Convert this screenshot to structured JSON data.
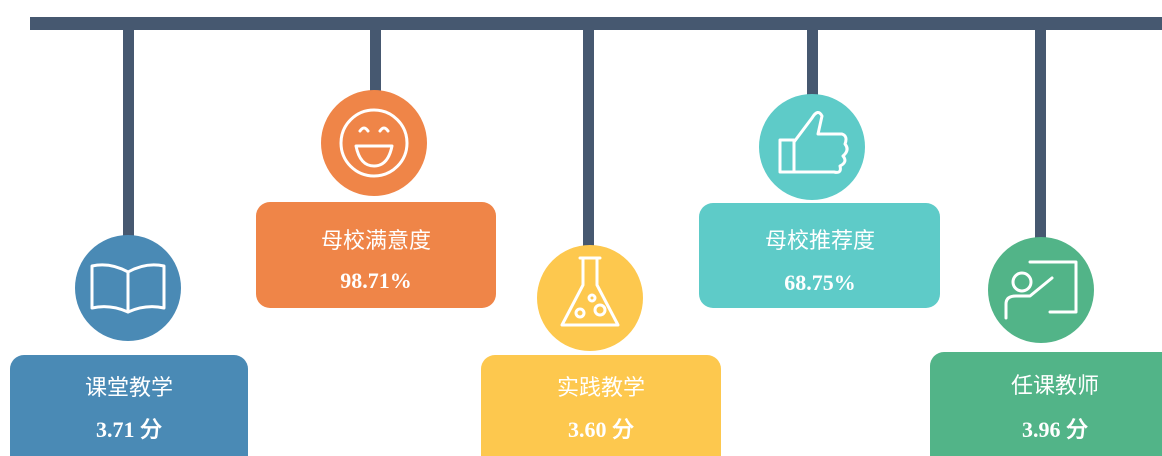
{
  "items": [
    {
      "label": "课堂教学",
      "value": "3.71 分"
    },
    {
      "label": "母校满意度",
      "value": "98.71%"
    },
    {
      "label": "实践教学",
      "value": "3.60 分"
    },
    {
      "label": "母校推荐度",
      "value": "68.75%"
    },
    {
      "label": "任课教师",
      "value": "3.96 分"
    }
  ]
}
